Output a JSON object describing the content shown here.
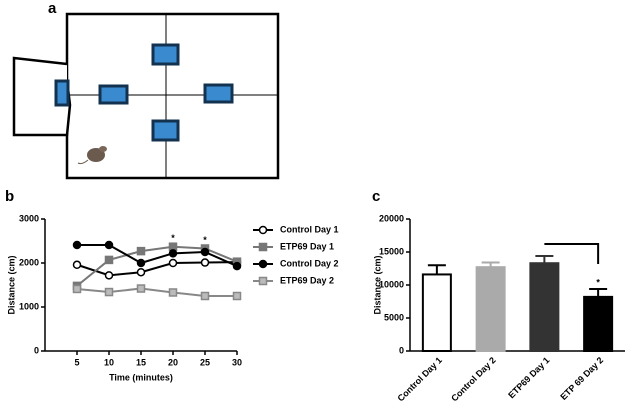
{
  "panel_labels": [
    "a",
    "b",
    "c"
  ],
  "chart_data": [
    {
      "type": "line",
      "x_label": "Time (minutes)",
      "y_label": "Distance (cm)",
      "x": [
        5,
        10,
        15,
        20,
        25,
        30
      ],
      "xlim": [
        0,
        30
      ],
      "xticks": [
        5,
        10,
        15,
        20,
        25,
        30
      ],
      "ylim": [
        0,
        3000
      ],
      "yticks": [
        0,
        1000,
        2000,
        3000
      ],
      "series": [
        {
          "name": "Control Day 1",
          "color": "#000000",
          "marker": "circle",
          "marker_fill": "#ffffff",
          "values": [
            1960,
            1720,
            1790,
            2000,
            2010,
            2020
          ]
        },
        {
          "name": "ETP69 Day 1",
          "color": "#777777",
          "marker": "square",
          "marker_fill": "#777777",
          "values": [
            1480,
            2070,
            2270,
            2370,
            2330,
            2030
          ]
        },
        {
          "name": "Control Day 2",
          "color": "#000000",
          "marker": "circle",
          "marker_fill": "#000000",
          "values": [
            2410,
            2410,
            2000,
            2220,
            2250,
            1930
          ]
        },
        {
          "name": "ETP69 Day 2",
          "color": "#888888",
          "marker": "square",
          "marker_fill": "#bbbbbb",
          "values": [
            1410,
            1340,
            1420,
            1330,
            1250,
            1250
          ]
        }
      ],
      "annotations": [
        {
          "text": "*",
          "x": 20
        },
        {
          "text": "*",
          "x": 25
        }
      ]
    },
    {
      "type": "bar",
      "y_label": "Distance (cm)",
      "categories": [
        "Control Day 1",
        "Control Day 2",
        "ETP69 Day 1",
        "ETP 69 Day 2"
      ],
      "values": [
        11600,
        12700,
        13300,
        8200
      ],
      "errors": [
        1400,
        700,
        1100,
        1200
      ],
      "colors": [
        "#ffffff",
        "#aaaaaa",
        "#333333",
        "#000000"
      ],
      "ylim": [
        0,
        20000
      ],
      "yticks": [
        0,
        5000,
        10000,
        15000,
        20000
      ],
      "annotations": [
        {
          "text": "*",
          "x": "ETP 69 Day 2"
        }
      ]
    }
  ]
}
